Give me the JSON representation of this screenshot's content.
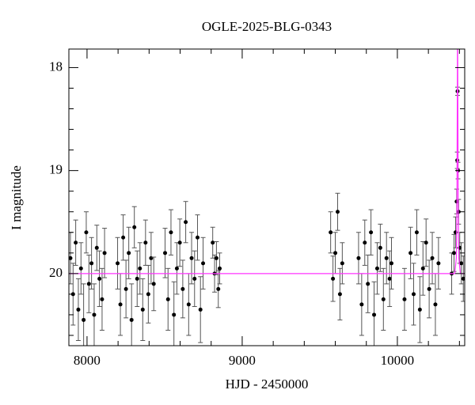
{
  "chart_data": {
    "type": "scatter",
    "title": "OGLE-2025-BLG-0343",
    "x_label": "HJD - 2450000",
    "y_label": "I magnitude",
    "xlim": [
      7883,
      10434
    ],
    "ylim": [
      17.82,
      20.7
    ],
    "y_inverted": true,
    "xticks": [
      8000,
      9000,
      10000
    ],
    "xminor_ticks": [
      8200,
      8400,
      8600,
      8800,
      9200,
      9400,
      9600,
      9800,
      10200,
      10400
    ],
    "yticks": [
      18,
      19,
      20
    ],
    "yminor_ticks": [
      18.2,
      18.4,
      18.6,
      18.8,
      19.2,
      19.4,
      19.6,
      19.8,
      20.2,
      20.4,
      20.6
    ],
    "points": {
      "name": "data",
      "color": "#000000",
      "x": [
        7893,
        7910,
        7927,
        7944,
        7961,
        7978,
        7995,
        8012,
        8029,
        8046,
        8063,
        8080,
        8097,
        8113,
        8197,
        8215,
        8233,
        8251,
        8269,
        8287,
        8305,
        8323,
        8341,
        8359,
        8377,
        8395,
        8413,
        8430,
        8503,
        8522,
        8541,
        8560,
        8579,
        8598,
        8617,
        8636,
        8655,
        8674,
        8693,
        8712,
        8731,
        8748,
        8810,
        8822,
        8834,
        8846,
        8855,
        9570,
        9585,
        9600,
        9615,
        9630,
        9645,
        9750,
        9770,
        9790,
        9810,
        9830,
        9850,
        9870,
        9890,
        9910,
        9930,
        9950,
        9962,
        10046,
        10085,
        10105,
        10125,
        10145,
        10165,
        10185,
        10205,
        10225,
        10245,
        10265,
        10350,
        10365,
        10375,
        10382,
        10386,
        10388,
        10391,
        10395,
        10402,
        10412,
        10425
      ],
      "y": [
        19.85,
        20.2,
        19.7,
        20.35,
        19.95,
        20.45,
        19.6,
        20.1,
        19.9,
        20.4,
        19.75,
        20.05,
        20.25,
        19.8,
        19.9,
        20.3,
        19.65,
        20.15,
        19.8,
        20.45,
        19.55,
        20.05,
        19.95,
        20.35,
        19.7,
        20.2,
        19.85,
        20.1,
        19.8,
        20.25,
        19.6,
        20.4,
        19.95,
        19.7,
        20.15,
        19.5,
        20.3,
        19.85,
        20.05,
        19.65,
        20.35,
        19.9,
        19.7,
        20.0,
        19.85,
        20.15,
        19.95,
        19.6,
        20.05,
        19.8,
        19.4,
        20.2,
        19.9,
        19.85,
        20.3,
        19.7,
        20.1,
        19.6,
        20.4,
        19.95,
        19.75,
        20.25,
        19.85,
        20.05,
        19.9,
        20.25,
        19.8,
        20.2,
        19.6,
        20.35,
        19.95,
        19.7,
        20.15,
        19.85,
        20.3,
        19.9,
        20.0,
        19.8,
        19.6,
        19.3,
        18.9,
        18.23,
        19.0,
        19.4,
        19.75,
        19.9,
        20.05
      ],
      "errors": [
        0.25,
        0.3,
        0.22,
        0.3,
        0.25,
        0.35,
        0.2,
        0.28,
        0.25,
        0.3,
        0.22,
        0.27,
        0.3,
        0.24,
        0.25,
        0.3,
        0.22,
        0.28,
        0.25,
        0.35,
        0.2,
        0.27,
        0.25,
        0.3,
        0.22,
        0.28,
        0.25,
        0.26,
        0.24,
        0.3,
        0.22,
        0.32,
        0.25,
        0.23,
        0.28,
        0.2,
        0.3,
        0.25,
        0.27,
        0.22,
        0.32,
        0.25,
        0.15,
        0.18,
        0.16,
        0.18,
        0.15,
        0.2,
        0.22,
        0.2,
        0.18,
        0.25,
        0.2,
        0.25,
        0.3,
        0.22,
        0.28,
        0.22,
        0.32,
        0.25,
        0.23,
        0.3,
        0.25,
        0.27,
        0.25,
        0.3,
        0.25,
        0.3,
        0.22,
        0.32,
        0.26,
        0.23,
        0.28,
        0.25,
        0.3,
        0.25,
        0.2,
        0.18,
        0.15,
        0.12,
        0.08,
        0.04,
        0.08,
        0.12,
        0.15,
        0.2,
        0.22
      ]
    },
    "model": {
      "name": "model",
      "color": "#ff33ff",
      "x": [
        7883,
        10370,
        10380,
        10384,
        10388,
        10392,
        10396,
        10406,
        10434
      ],
      "y": [
        20.0,
        20.0,
        19.85,
        19.3,
        17.5,
        19.3,
        19.85,
        20.0,
        20.0
      ]
    }
  }
}
